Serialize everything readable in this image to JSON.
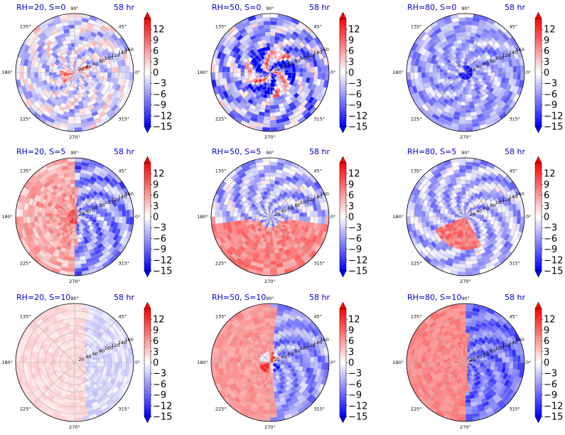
{
  "chart_data": {
    "type": "polar-contour-grid",
    "rows": 3,
    "cols": 3,
    "angular_ticks": [
      "0°",
      "45°",
      "90°",
      "135°",
      "180°",
      "225°",
      "270°",
      "315°"
    ],
    "radial_ticks": [
      "20",
      "40",
      "60",
      "80",
      "100",
      "120",
      "140",
      "160"
    ],
    "radial_max": 160,
    "colorbar": {
      "cmap": "bwr",
      "vmin": -15,
      "vmax": 15,
      "ticks": [
        12,
        9,
        6,
        3,
        0,
        -3,
        -6,
        -9,
        -12,
        -15
      ],
      "tick_labels": [
        "12",
        "9",
        "6",
        "3",
        "0",
        "−3",
        "−6",
        "−9",
        "−12",
        "−15"
      ],
      "extend": "both"
    },
    "panels": [
      {
        "title": "RH=20, S=0",
        "time": "58 hr",
        "pattern": "mixed_weak",
        "mean": -2
      },
      {
        "title": "RH=50, S=0",
        "time": "58 hr",
        "pattern": "mixed_core",
        "mean": -4
      },
      {
        "title": "RH=80, S=0",
        "time": "58 hr",
        "pattern": "blue_core",
        "mean": -6
      },
      {
        "title": "RH=20, S=5",
        "time": "58 hr",
        "pattern": "red_west",
        "mean": 0
      },
      {
        "title": "RH=50, S=5",
        "time": "58 hr",
        "pattern": "red_south",
        "mean": -1
      },
      {
        "title": "RH=80, S=5",
        "time": "58 hr",
        "pattern": "red_southwest",
        "mean": -2
      },
      {
        "title": "RH=20, S=10",
        "time": "58 hr",
        "pattern": "light_pink",
        "mean": 0
      },
      {
        "title": "RH=50, S=10",
        "time": "58 hr",
        "pattern": "split_halves",
        "mean": 0
      },
      {
        "title": "RH=80, S=10",
        "time": "58 hr",
        "pattern": "split_strong",
        "mean": 0
      }
    ]
  }
}
